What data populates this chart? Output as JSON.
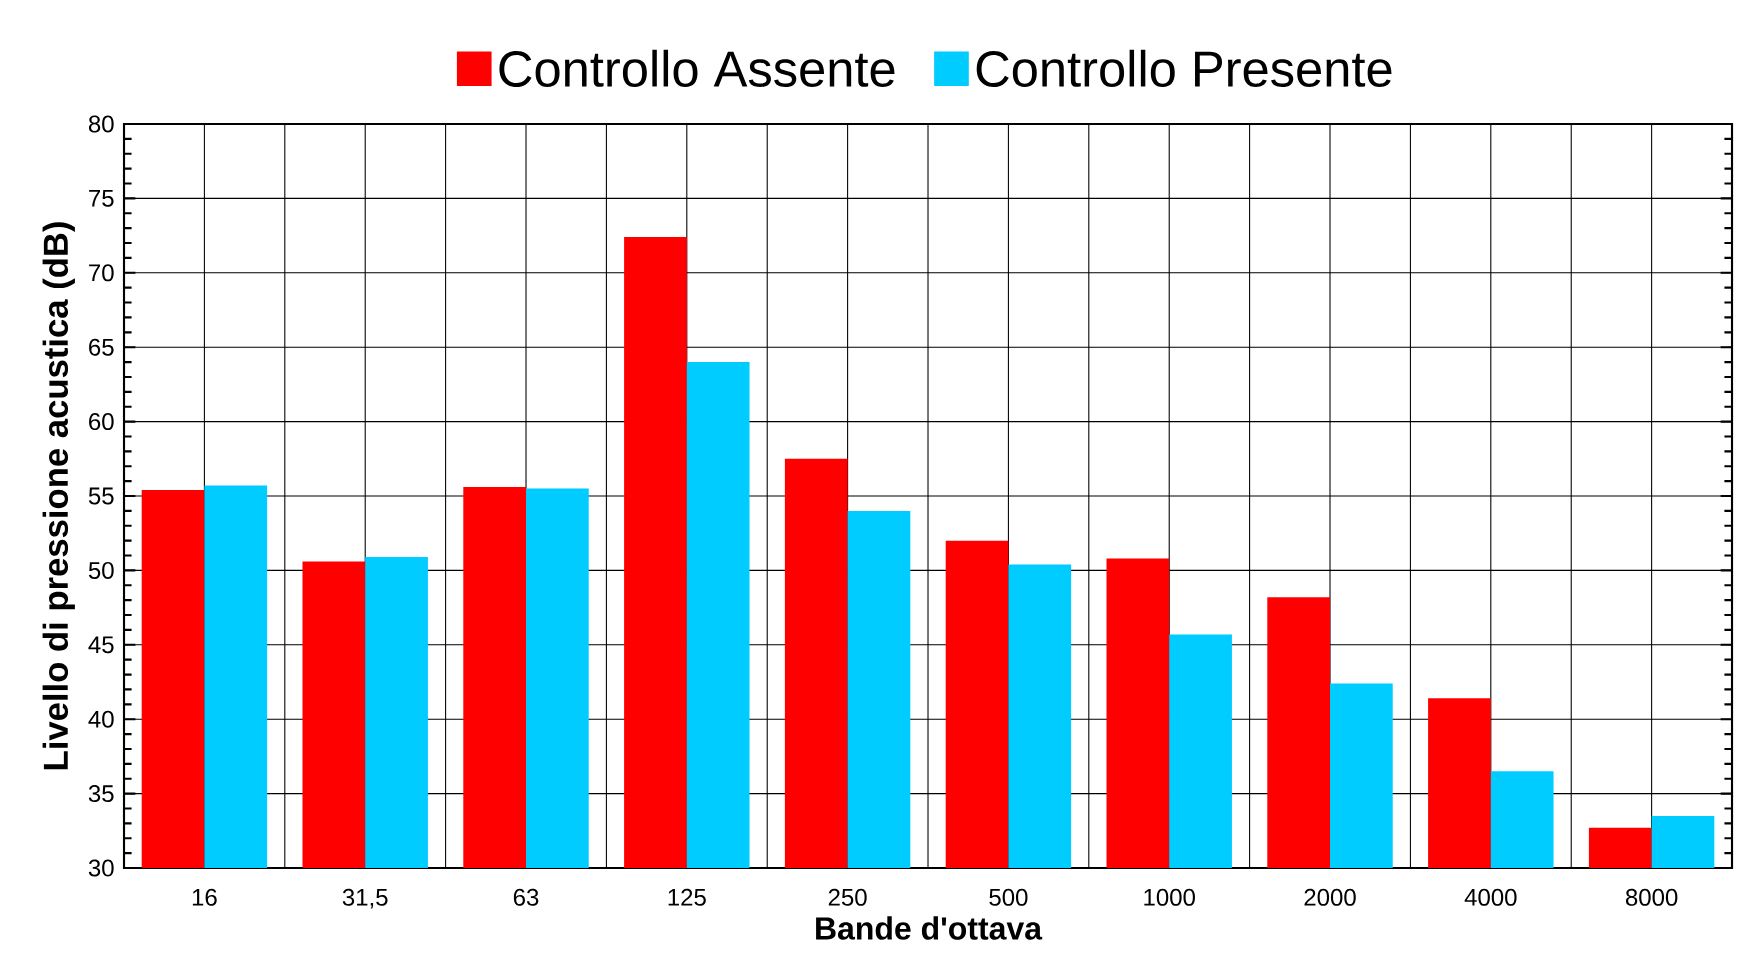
{
  "chart_data": {
    "type": "bar",
    "xlabel": "Bande d'ottava",
    "ylabel": "Livello di pressione acustica (dB)",
    "categories": [
      "16",
      "31,5",
      "63",
      "125",
      "250",
      "500",
      "1000",
      "2000",
      "4000",
      "8000"
    ],
    "series": [
      {
        "name": "Controllo Assente",
        "color": "#ff0000",
        "values": [
          55.4,
          50.6,
          55.6,
          72.4,
          57.5,
          52.0,
          50.8,
          48.2,
          41.4,
          32.7
        ]
      },
      {
        "name": "Controllo Presente",
        "color": "#00ccff",
        "values": [
          55.7,
          50.9,
          55.5,
          64.0,
          54.0,
          50.4,
          45.7,
          42.4,
          36.5,
          33.5
        ]
      }
    ],
    "ylim": [
      30,
      80
    ],
    "yticks": [
      30,
      35,
      40,
      45,
      50,
      55,
      60,
      65,
      70,
      75,
      80
    ],
    "grid": true,
    "legend": "top"
  }
}
